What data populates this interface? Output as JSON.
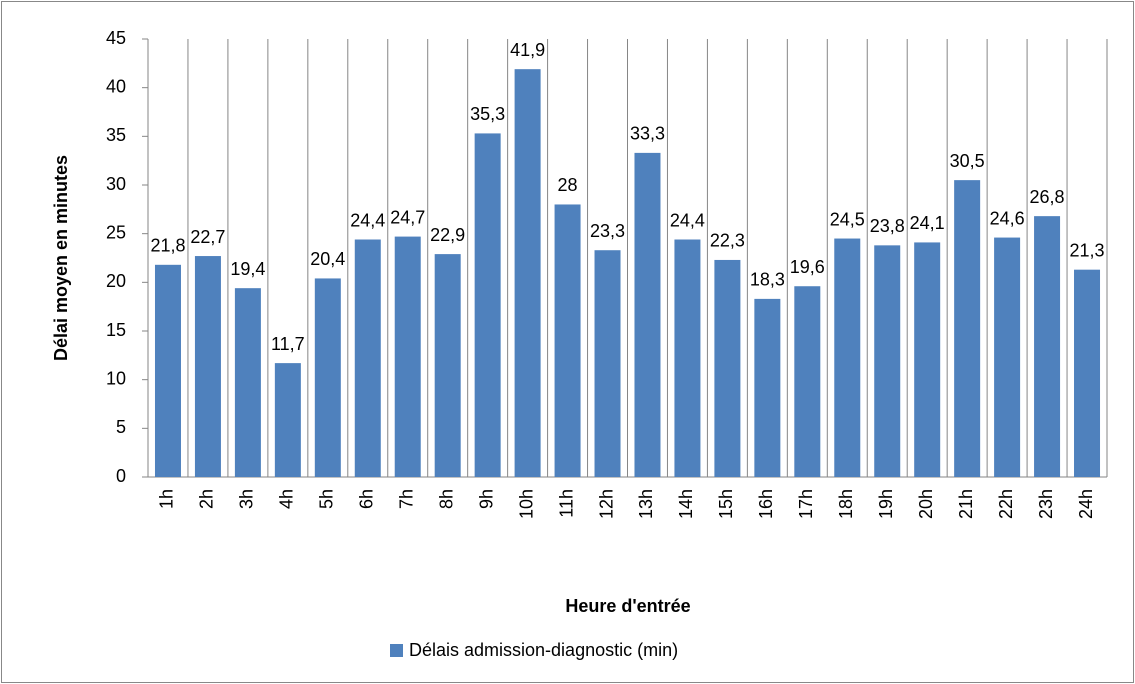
{
  "chart_data": {
    "type": "bar",
    "x_label": "Heure d'entrée",
    "y_label": "Délai moyen en minutes",
    "categories": [
      "1h",
      "2h",
      "3h",
      "4h",
      "5h",
      "6h",
      "7h",
      "8h",
      "9h",
      "10h",
      "11h",
      "12h",
      "13h",
      "14h",
      "15h",
      "16h",
      "17h",
      "18h",
      "19h",
      "20h",
      "21h",
      "22h",
      "23h",
      "24h"
    ],
    "series": [
      {
        "name": "Délais admission-diagnostic (min)",
        "color": "#4f81bd",
        "values": [
          21.8,
          22.7,
          19.4,
          11.7,
          20.4,
          24.4,
          24.7,
          22.9,
          35.3,
          41.9,
          28,
          23.3,
          33.3,
          24.4,
          22.3,
          18.3,
          19.6,
          24.5,
          23.8,
          24.1,
          30.5,
          24.6,
          26.8,
          21.3
        ],
        "value_labels": [
          "21,8",
          "22,7",
          "19,4",
          "11,7",
          "20,4",
          "24,4",
          "24,7",
          "22,9",
          "35,3",
          "41,9",
          "28",
          "23,3",
          "33,3",
          "24,4",
          "22,3",
          "18,3",
          "19,6",
          "24,5",
          "23,8",
          "24,1",
          "30,5",
          "24,6",
          "26,8",
          "21,3"
        ]
      }
    ],
    "ylim": [
      0,
      45
    ],
    "yticks": [
      0,
      5,
      10,
      15,
      20,
      25,
      30,
      35,
      40,
      45
    ],
    "grid": true,
    "legend": "bottom"
  }
}
